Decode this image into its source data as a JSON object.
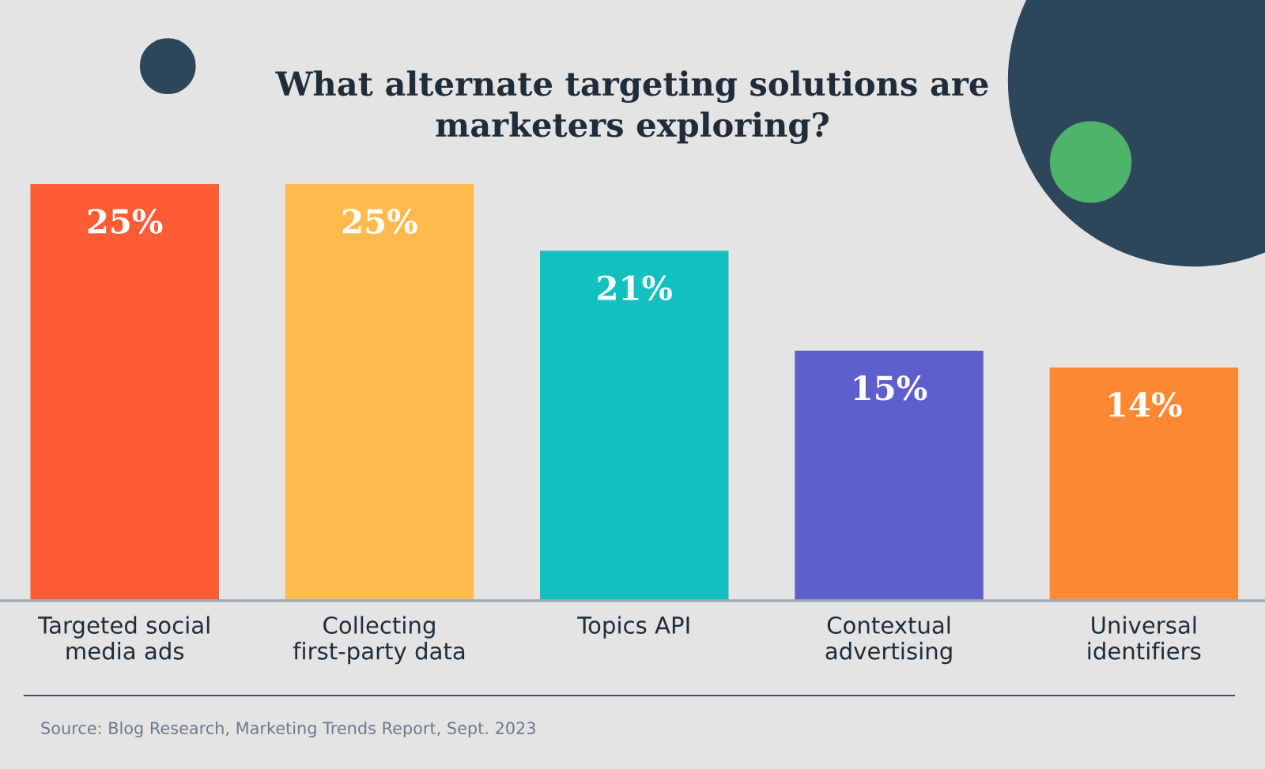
{
  "chart_data": {
    "type": "bar",
    "title": "What alternate targeting solutions are\nmarketers exploring?",
    "categories": [
      "Targeted social\nmedia ads",
      "Collecting\nfirst-party data",
      "Topics API",
      "Contextual\nadvertising",
      "Universal\nidentifiers"
    ],
    "values": [
      25,
      25,
      21,
      15,
      14
    ],
    "colors": [
      "#ff5c35",
      "#ffba4d",
      "#12c0c0",
      "#5e5fcc",
      "#ff8933"
    ],
    "value_labels": [
      "25%",
      "25%",
      "21%",
      "15%",
      "14%"
    ],
    "annotations": [
      "Source: Blog Research, Marketing Trends Report, Sept. 2023"
    ]
  }
}
